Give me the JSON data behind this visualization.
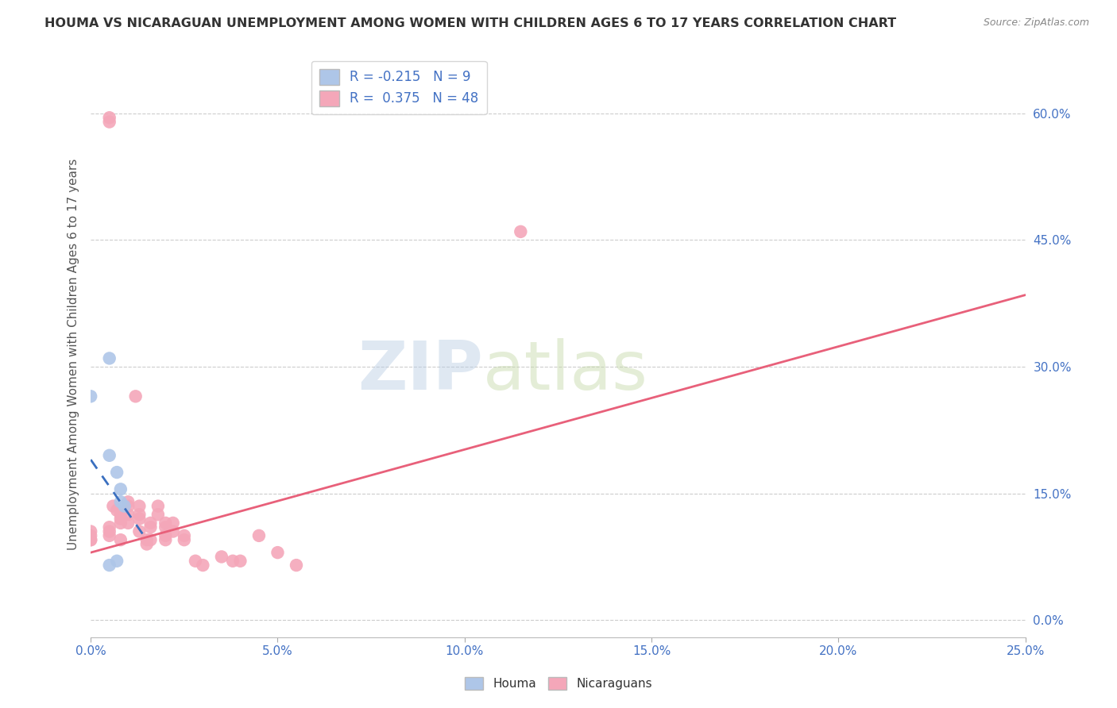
{
  "title": "HOUMA VS NICARAGUAN UNEMPLOYMENT AMONG WOMEN WITH CHILDREN AGES 6 TO 17 YEARS CORRELATION CHART",
  "source": "Source: ZipAtlas.com",
  "ylabel": "Unemployment Among Women with Children Ages 6 to 17 years",
  "xlim": [
    0.0,
    0.25
  ],
  "ylim": [
    -0.02,
    0.65
  ],
  "xticks": [
    0.0,
    0.05,
    0.1,
    0.15,
    0.2,
    0.25
  ],
  "yticks_right": [
    0.0,
    0.15,
    0.3,
    0.45,
    0.6
  ],
  "houma_R": -0.215,
  "houma_N": 9,
  "nicaraguan_R": 0.375,
  "nicaraguan_N": 48,
  "houma_color": "#aec6e8",
  "houma_line_color": "#3a6fbf",
  "nicaraguan_color": "#f4a7b9",
  "nicaraguan_line_color": "#e8607a",
  "background_color": "#ffffff",
  "watermark_zip": "ZIP",
  "watermark_atlas": "atlas",
  "houma_points": [
    [
      0.0,
      0.265
    ],
    [
      0.005,
      0.31
    ],
    [
      0.005,
      0.195
    ],
    [
      0.007,
      0.175
    ],
    [
      0.008,
      0.155
    ],
    [
      0.008,
      0.14
    ],
    [
      0.009,
      0.135
    ],
    [
      0.007,
      0.07
    ],
    [
      0.005,
      0.065
    ]
  ],
  "nicaraguan_points": [
    [
      0.0,
      0.095
    ],
    [
      0.0,
      0.1
    ],
    [
      0.0,
      0.095
    ],
    [
      0.0,
      0.105
    ],
    [
      0.005,
      0.1
    ],
    [
      0.005,
      0.105
    ],
    [
      0.005,
      0.11
    ],
    [
      0.005,
      0.595
    ],
    [
      0.005,
      0.59
    ],
    [
      0.006,
      0.135
    ],
    [
      0.007,
      0.13
    ],
    [
      0.008,
      0.125
    ],
    [
      0.008,
      0.12
    ],
    [
      0.008,
      0.115
    ],
    [
      0.008,
      0.095
    ],
    [
      0.01,
      0.14
    ],
    [
      0.01,
      0.135
    ],
    [
      0.01,
      0.125
    ],
    [
      0.01,
      0.115
    ],
    [
      0.012,
      0.265
    ],
    [
      0.013,
      0.135
    ],
    [
      0.013,
      0.125
    ],
    [
      0.013,
      0.12
    ],
    [
      0.013,
      0.105
    ],
    [
      0.015,
      0.095
    ],
    [
      0.015,
      0.09
    ],
    [
      0.016,
      0.115
    ],
    [
      0.016,
      0.11
    ],
    [
      0.016,
      0.095
    ],
    [
      0.018,
      0.135
    ],
    [
      0.018,
      0.125
    ],
    [
      0.02,
      0.115
    ],
    [
      0.02,
      0.11
    ],
    [
      0.02,
      0.1
    ],
    [
      0.02,
      0.095
    ],
    [
      0.022,
      0.115
    ],
    [
      0.022,
      0.105
    ],
    [
      0.025,
      0.1
    ],
    [
      0.025,
      0.095
    ],
    [
      0.028,
      0.07
    ],
    [
      0.03,
      0.065
    ],
    [
      0.035,
      0.075
    ],
    [
      0.038,
      0.07
    ],
    [
      0.04,
      0.07
    ],
    [
      0.045,
      0.1
    ],
    [
      0.05,
      0.08
    ],
    [
      0.055,
      0.065
    ],
    [
      0.115,
      0.46
    ]
  ],
  "nic_trendline": [
    0.0,
    0.08,
    0.25,
    0.385
  ],
  "hou_trendline": [
    0.0,
    0.19,
    0.015,
    0.095
  ]
}
